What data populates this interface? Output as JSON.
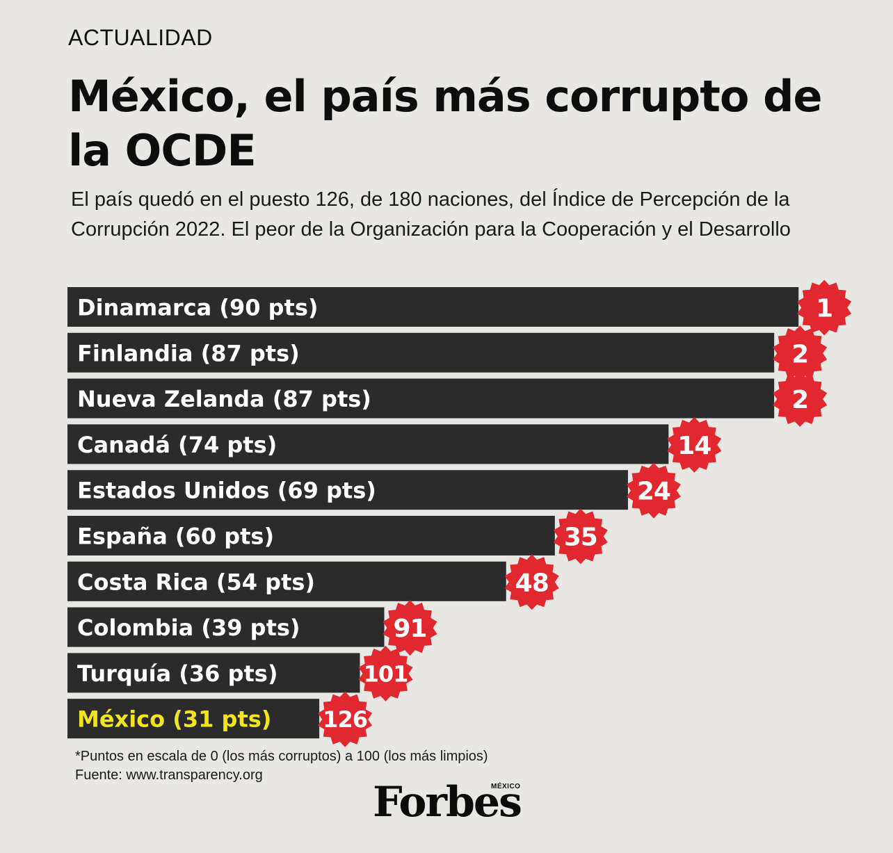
{
  "header": {
    "kicker": "ACTUALIDAD",
    "title": "México, el país más corrupto de la OCDE",
    "subtitle": "El país quedó en el puesto 126, de 180 naciones, del Índice de Percepción de la Corrupción 2022. El peor de la Organización para la Cooperación y el Desarrollo"
  },
  "footer": {
    "note": "*Puntos en escala de 0 (los más corruptos) a 100 (los más limpios)",
    "source": "Fuente: www.transparency.org"
  },
  "brand": {
    "logo_text": "Forbes",
    "logo_sub": "MÉXICO"
  },
  "colors": {
    "bar": "#2b2b2b",
    "bar_label": "#ffffff",
    "highlight_label": "#f2e51f",
    "badge": "#e0282e",
    "background": "#e8e7e4"
  },
  "chart_data": {
    "type": "bar",
    "orientation": "horizontal",
    "xlim": [
      0,
      100
    ],
    "categories": [
      "Dinamarca",
      "Finlandia",
      "Nueva Zelanda",
      "Canadá",
      "Estados Unidos",
      "España",
      "Costa Rica",
      "Colombia",
      "Turquía",
      "México"
    ],
    "labels": [
      "Dinamarca (90 pts)",
      "Finlandia (87 pts)",
      "Nueva Zelanda (87 pts)",
      "Canadá (74 pts)",
      "Estados Unidos (69 pts)",
      "España (60 pts)",
      "Costa Rica (54 pts)",
      "Colombia (39 pts)",
      "Turquía (36 pts)",
      "México (31 pts)"
    ],
    "values": [
      90,
      87,
      87,
      74,
      69,
      60,
      54,
      39,
      36,
      31
    ],
    "ranks": [
      "1",
      "2",
      "2",
      "14",
      "24",
      "35",
      "48",
      "91",
      "101",
      "126"
    ],
    "highlight": "México"
  }
}
